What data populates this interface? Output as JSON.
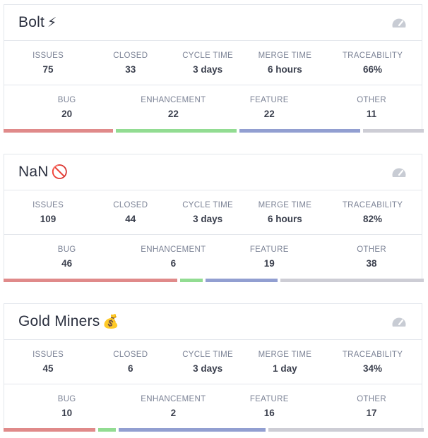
{
  "colors": {
    "bug": "#e08a8a",
    "enhancement": "#92dc92",
    "feature": "#929fd1",
    "other": "#cdcdd5"
  },
  "teams": [
    {
      "name": "Bolt",
      "emoji": "⚡",
      "stats": [
        {
          "label": "ISSUES",
          "value": "75"
        },
        {
          "label": "CLOSED",
          "value": "33"
        },
        {
          "label": "CYCLE TIME",
          "value": "3 days"
        },
        {
          "label": "MERGE TIME",
          "value": "6 hours"
        },
        {
          "label": "TRACEABILITY",
          "value": "66%"
        }
      ],
      "types": [
        {
          "label": "BUG",
          "value": "20"
        },
        {
          "label": "ENHANCEMENT",
          "value": "22"
        },
        {
          "label": "FEATURE",
          "value": "22"
        },
        {
          "label": "OTHER",
          "value": "11"
        }
      ]
    },
    {
      "name": "NaN",
      "emoji": "🚫",
      "stats": [
        {
          "label": "ISSUES",
          "value": "109"
        },
        {
          "label": "CLOSED",
          "value": "44"
        },
        {
          "label": "CYCLE TIME",
          "value": "3 days"
        },
        {
          "label": "MERGE TIME",
          "value": "6 hours"
        },
        {
          "label": "TRACEABILITY",
          "value": "82%"
        }
      ],
      "types": [
        {
          "label": "BUG",
          "value": "46"
        },
        {
          "label": "ENHANCEMENT",
          "value": "6"
        },
        {
          "label": "FEATURE",
          "value": "19"
        },
        {
          "label": "OTHER",
          "value": "38"
        }
      ]
    },
    {
      "name": "Gold Miners",
      "emoji": "💰",
      "stats": [
        {
          "label": "ISSUES",
          "value": "45"
        },
        {
          "label": "CLOSED",
          "value": "6"
        },
        {
          "label": "CYCLE TIME",
          "value": "3 days"
        },
        {
          "label": "MERGE TIME",
          "value": "1 day"
        },
        {
          "label": "TRACEABILITY",
          "value": "34%"
        }
      ],
      "types": [
        {
          "label": "BUG",
          "value": "10"
        },
        {
          "label": "ENHANCEMENT",
          "value": "2"
        },
        {
          "label": "FEATURE",
          "value": "16"
        },
        {
          "label": "OTHER",
          "value": "17"
        }
      ]
    }
  ]
}
